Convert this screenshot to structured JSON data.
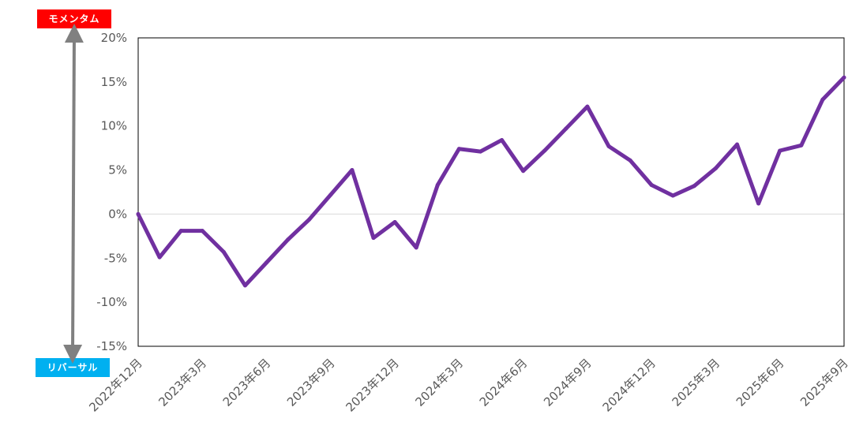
{
  "badges": {
    "top": {
      "label": "モメンタム",
      "color": "#ff0000"
    },
    "bottom": {
      "label": "リバーサル",
      "color": "#00b0f0"
    }
  },
  "colors": {
    "line": "#7030a0",
    "arrow": "#808080",
    "axis": "#000000",
    "zero_line": "#d9d9d9",
    "tick_text": "#595959"
  },
  "chart_data": {
    "type": "line",
    "title": "",
    "xlabel": "",
    "ylabel": "",
    "ylim": [
      -15,
      20
    ],
    "y_ticks": [
      20,
      15,
      10,
      5,
      0,
      -5,
      -10,
      -15
    ],
    "y_tick_labels": [
      "20%",
      "15%",
      "10%",
      "5%",
      "0%",
      "-5%",
      "-10%",
      "-15%"
    ],
    "x_tick_labels": [
      "2022年12月",
      "2023年3月",
      "2023年6月",
      "2023年9月",
      "2023年12月",
      "2024年3月",
      "2024年6月",
      "2024年9月",
      "2024年12月",
      "2025年3月",
      "2025年6月",
      "2025年9月"
    ],
    "x_tick_every": 3,
    "grid": false,
    "legend": "none",
    "series": [
      {
        "values": [
          0.0,
          -4.9,
          -1.9,
          -1.9,
          -4.3,
          -8.1,
          -5.5,
          -2.9,
          -0.6,
          2.2,
          5.0,
          -2.7,
          -0.9,
          -3.8,
          3.3,
          7.4,
          7.1,
          8.4,
          4.9,
          7.2,
          9.7,
          12.2,
          7.7,
          6.1,
          3.3,
          2.1,
          3.2,
          5.2,
          7.9,
          1.2,
          7.2,
          7.8,
          13.0,
          15.5
        ]
      }
    ]
  }
}
